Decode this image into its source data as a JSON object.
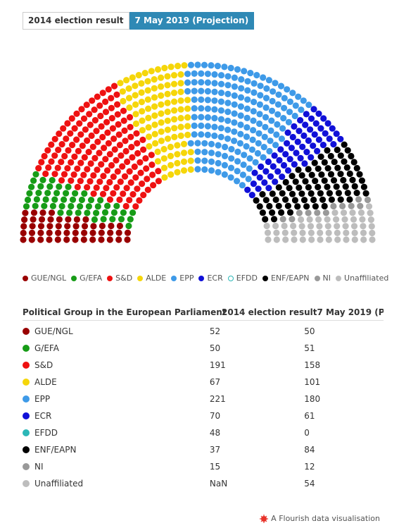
{
  "chart_data": {
    "type": "parliament",
    "categories": [
      "GUE/NGL",
      "G/EFA",
      "S&D",
      "ALDE",
      "EPP",
      "ECR",
      "EFDD",
      "ENF/EAPN",
      "NI",
      "Unaffiliated"
    ],
    "colors": [
      "#990000",
      "#179c17",
      "#ee1111",
      "#f5d60a",
      "#3e9ae8",
      "#1010d8",
      "#2bb7b7",
      "#000000",
      "#999999",
      "#bdbdbd"
    ],
    "series": [
      {
        "name": "2014 election result",
        "values": [
          52,
          50,
          191,
          67,
          221,
          70,
          48,
          37,
          15,
          null
        ],
        "value_labels": [
          "52",
          "50",
          "191",
          "67",
          "221",
          "70",
          "48",
          "37",
          "15",
          "NaN"
        ]
      },
      {
        "name": "7 May 2019 (Projection)",
        "values": [
          50,
          51,
          158,
          101,
          180,
          61,
          0,
          84,
          12,
          54
        ]
      }
    ],
    "selected_series": 1
  },
  "table": {
    "header": "Political Group in the European Parliament"
  },
  "footer": "A Flourish data visualisation"
}
